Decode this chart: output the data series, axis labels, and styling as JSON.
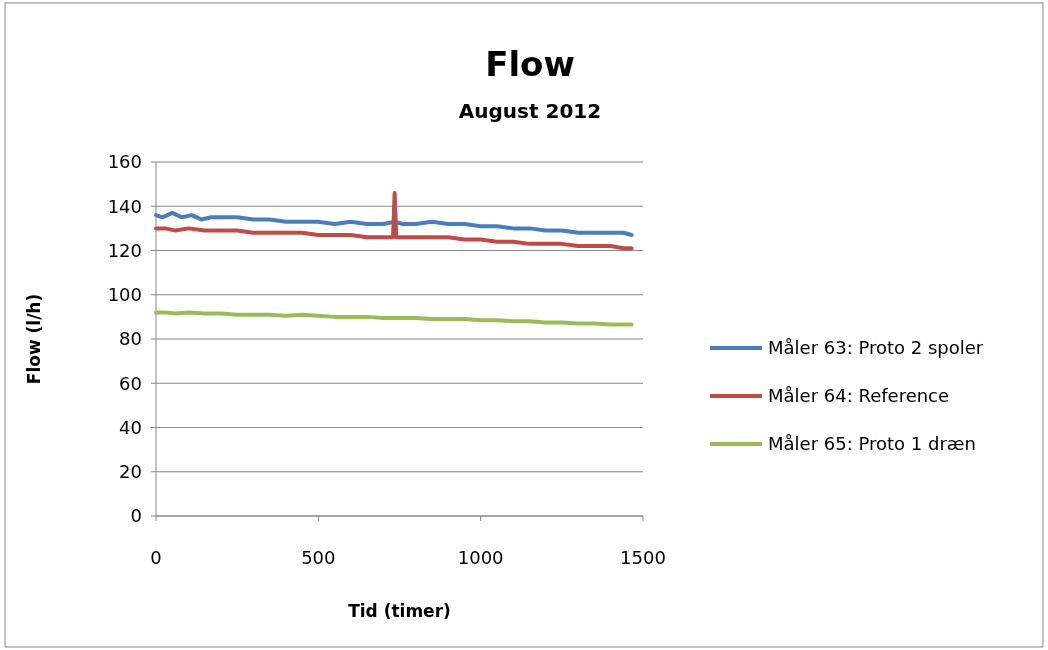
{
  "chart_data": {
    "type": "line",
    "title": "Flow",
    "subtitle": "August 2012",
    "xlabel": "Tid (timer)",
    "ylabel": "Flow (l/h)",
    "xlim": [
      0,
      1500
    ],
    "xticks": [
      0,
      500,
      1000,
      1500
    ],
    "ylim": [
      0,
      160
    ],
    "yticks": [
      0,
      20,
      40,
      60,
      80,
      100,
      120,
      140,
      160
    ],
    "grid": "y",
    "legend": "right",
    "marker": "none",
    "line_style": "solid",
    "series": [
      {
        "name": "Måler 63: Proto 2 spoler",
        "color": "#4a7ebb",
        "x": [
          0,
          20,
          50,
          80,
          110,
          140,
          170,
          200,
          250,
          300,
          350,
          400,
          450,
          500,
          550,
          600,
          650,
          700,
          735,
          760,
          800,
          850,
          900,
          950,
          1000,
          1050,
          1100,
          1150,
          1200,
          1250,
          1300,
          1350,
          1400,
          1440,
          1465
        ],
        "values": [
          136,
          135,
          137,
          135,
          136,
          134,
          135,
          135,
          135,
          134,
          134,
          133,
          133,
          133,
          132,
          133,
          132,
          132,
          133,
          132,
          132,
          133,
          132,
          132,
          131,
          131,
          130,
          130,
          129,
          129,
          128,
          128,
          128,
          128,
          127
        ]
      },
      {
        "name": "Måler 64: Reference",
        "color": "#be4b48",
        "x": [
          0,
          30,
          60,
          100,
          150,
          200,
          250,
          300,
          350,
          400,
          450,
          500,
          550,
          600,
          650,
          700,
          730,
          735,
          740,
          760,
          800,
          850,
          900,
          950,
          1000,
          1050,
          1100,
          1150,
          1200,
          1250,
          1300,
          1350,
          1400,
          1440,
          1465
        ],
        "values": [
          130,
          130,
          129,
          130,
          129,
          129,
          129,
          128,
          128,
          128,
          128,
          127,
          127,
          127,
          126,
          126,
          126,
          146,
          126,
          126,
          126,
          126,
          126,
          125,
          125,
          124,
          124,
          123,
          123,
          123,
          122,
          122,
          122,
          121,
          121
        ]
      },
      {
        "name": "Måler 65: Proto 1 dræn",
        "color": "#9bbb59",
        "x": [
          0,
          30,
          60,
          100,
          150,
          200,
          250,
          300,
          350,
          400,
          450,
          500,
          550,
          600,
          650,
          700,
          750,
          800,
          850,
          900,
          950,
          1000,
          1050,
          1100,
          1150,
          1200,
          1250,
          1300,
          1350,
          1400,
          1440,
          1465
        ],
        "values": [
          92,
          92,
          91.5,
          92,
          91.5,
          91.5,
          91,
          91,
          91,
          90.5,
          91,
          90.5,
          90,
          90,
          90,
          89.5,
          89.5,
          89.5,
          89,
          89,
          89,
          88.5,
          88.5,
          88,
          88,
          87.5,
          87.5,
          87,
          87,
          86.5,
          86.5,
          86.5
        ]
      }
    ]
  }
}
